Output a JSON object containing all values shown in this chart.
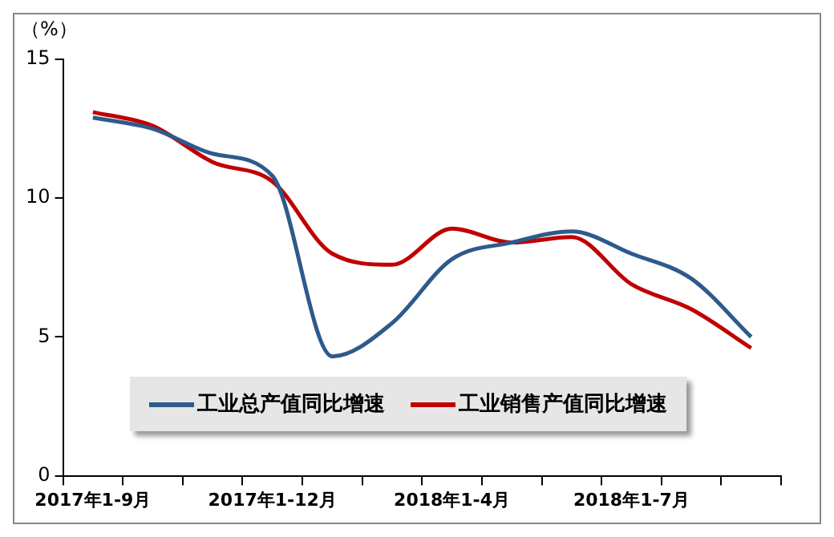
{
  "chart_data": {
    "type": "line",
    "ylabel": "（%）",
    "categories": [
      "2017年1-9月",
      null,
      null,
      "2017年1-12月",
      null,
      null,
      "2018年1-4月",
      null,
      null,
      "2018年1-7月",
      null,
      null
    ],
    "series": [
      {
        "name": "工业总产值同比增速",
        "color": "#2e5a8c",
        "values": [
          12.9,
          12.5,
          11.6,
          10.8,
          4.3,
          5.5,
          7.8,
          8.4,
          8.8,
          8.0,
          7.1,
          5.0
        ]
      },
      {
        "name": "工业销售产值同比增速",
        "color": "#c00000",
        "values": [
          13.1,
          12.6,
          11.3,
          10.6,
          8.0,
          7.6,
          8.9,
          8.4,
          8.6,
          6.9,
          6.0,
          4.6
        ]
      }
    ],
    "ylim": [
      0,
      15
    ],
    "yticks": [
      0,
      5,
      10,
      15
    ],
    "grid": false,
    "legend": "bottom",
    "marker": "none",
    "line_style": "solid"
  }
}
